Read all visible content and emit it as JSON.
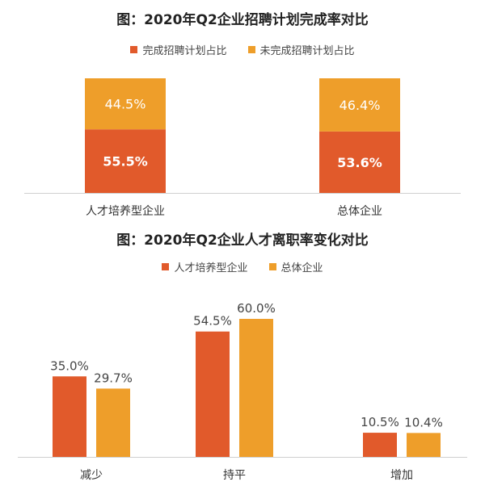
{
  "colors": {
    "orange_red": "#E15A2B",
    "amber": "#EE9E2A",
    "axis": "#D0D0D0"
  },
  "chart_data": [
    {
      "type": "bar",
      "stacked": true,
      "title": "图：2020年Q2企业招聘计划完成率对比",
      "categories": [
        "人才培养型企业",
        "总体企业"
      ],
      "series": [
        {
          "name": "完成招聘计划占比",
          "values": [
            55.5,
            53.6
          ],
          "labels": [
            "55.5%",
            "53.6%"
          ]
        },
        {
          "name": "未完成招聘计划占比",
          "values": [
            44.5,
            46.4
          ],
          "labels": [
            "44.5%",
            "46.4%"
          ]
        }
      ],
      "ylim": [
        0,
        100
      ],
      "legend": "top-center",
      "grid": false
    },
    {
      "type": "bar",
      "title": "图：2020年Q2企业人才离职率变化对比",
      "categories": [
        "减少",
        "持平",
        "增加"
      ],
      "series": [
        {
          "name": "人才培养型企业",
          "values": [
            35.0,
            54.5,
            10.5
          ],
          "labels": [
            "35.0%",
            "54.5%",
            "10.5%"
          ]
        },
        {
          "name": "总体企业",
          "values": [
            29.7,
            60.0,
            10.4
          ],
          "labels": [
            "29.7%",
            "60.0%",
            "10.4%"
          ]
        }
      ],
      "ylim": [
        0,
        60
      ],
      "legend": "top-center",
      "grid": false
    }
  ]
}
